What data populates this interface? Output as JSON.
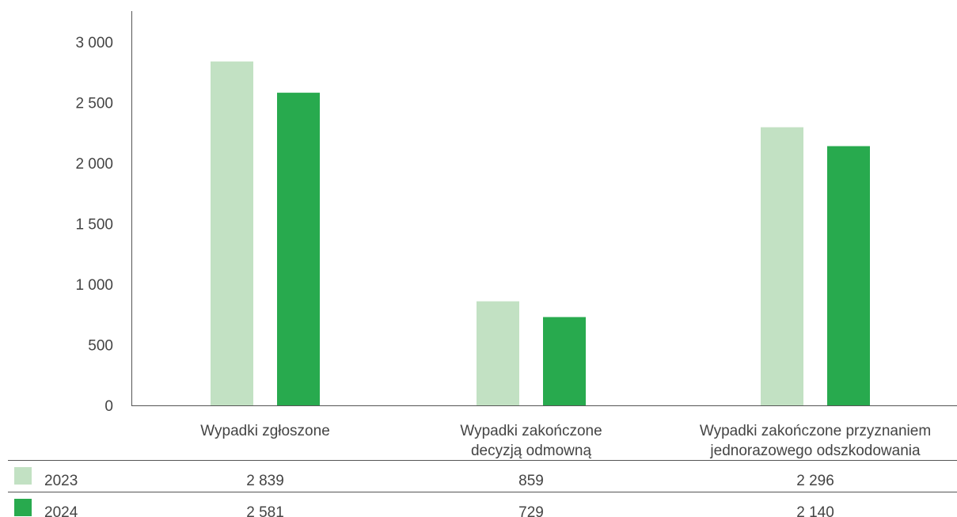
{
  "chart_data": {
    "type": "bar",
    "categories": [
      [
        "Wypadki zgłoszone"
      ],
      [
        "Wypadki zakończone",
        "decyzją odmowną"
      ],
      [
        "Wypadki zakończone przyznaniem",
        "jednorazowego odszkodowania"
      ]
    ],
    "series": [
      {
        "name": "2023",
        "values": [
          2839,
          859,
          2296
        ],
        "color": "#c2e1c3",
        "labels": [
          "2 839",
          "859",
          "2 296"
        ]
      },
      {
        "name": "2024",
        "values": [
          2581,
          729,
          2140
        ],
        "color": "#28aa4e",
        "labels": [
          "2 581",
          "729",
          "2 140"
        ]
      }
    ],
    "yticks": [
      {
        "value": 0,
        "label": "0"
      },
      {
        "value": 500,
        "label": "500"
      },
      {
        "value": 1000,
        "label": "1 000"
      },
      {
        "value": 1500,
        "label": "1 500"
      },
      {
        "value": 2000,
        "label": "2 000"
      },
      {
        "value": 2500,
        "label": "2 500"
      },
      {
        "value": 3000,
        "label": "3 000"
      }
    ],
    "ylim": [
      0,
      3000
    ],
    "grid": false,
    "legend": "data-table-below"
  }
}
